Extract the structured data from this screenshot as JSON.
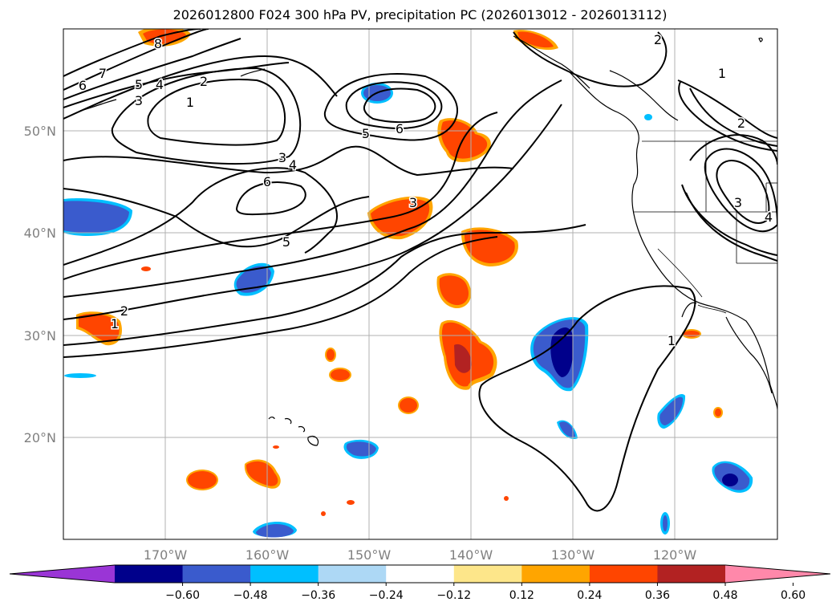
{
  "title": "2026012800 F024 300 hPa PV, precipitation PC (2026013012 - 2026013112)",
  "map": {
    "lat_labels": [
      "50°N",
      "40°N",
      "30°N",
      "20°N"
    ],
    "lon_labels": [
      "170°W",
      "160°W",
      "150°W",
      "140°W",
      "130°W",
      "120°W"
    ],
    "grid": true
  },
  "pv_contour_labels": [
    "8",
    "7",
    "6",
    "5",
    "4",
    "3",
    "2",
    "1",
    "6",
    "5",
    "3",
    "4",
    "6",
    "5",
    "3",
    "2",
    "1",
    "1",
    "2",
    "1",
    "2",
    "3",
    "4"
  ],
  "colorbar": {
    "ticks": [
      "−0.60",
      "−0.48",
      "−0.36",
      "−0.24",
      "−0.12",
      "0.12",
      "0.24",
      "0.36",
      "0.48",
      "0.60"
    ],
    "colors": [
      "#9a35d6",
      "#00008b",
      "#3a5bcd",
      "#00bfff",
      "#add8f5",
      "#ffffff",
      "#fde68a",
      "#ffa500",
      "#ff4500",
      "#b22222",
      "#ff88aa"
    ],
    "extend": "both"
  },
  "colors": {
    "land_outline": "#000000",
    "grid": "#b0b0b0",
    "pv_contour": "#000000"
  }
}
